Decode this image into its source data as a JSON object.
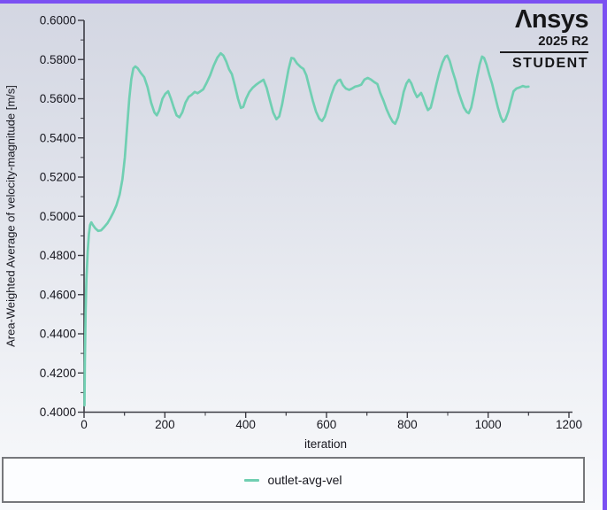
{
  "window": {
    "accent_border_color": "#7b50f2",
    "background_top": "#d3d6e2",
    "background_bottom": "#f9fafc"
  },
  "logo": {
    "brand_display": "Λnsys",
    "release": "2025 R2",
    "edition": "STUDENT"
  },
  "legend": {
    "entries": [
      {
        "label": "outlet-avg-vel",
        "color": "#70cfb2"
      }
    ]
  },
  "chart_data": {
    "type": "line",
    "title": "",
    "xlabel": "iteration",
    "ylabel": "Area-Weighted Average of velocity-magnitude [m/s]",
    "xlim": [
      0,
      1200
    ],
    "ylim": [
      0.4,
      0.6
    ],
    "x_major_step": 200,
    "x_minor_step": 100,
    "y_major_step": 0.02,
    "y_minor_step": 0.01,
    "y_tick_decimals": 4,
    "grid": false,
    "legend_position": "bottom",
    "axis_color": "#3c3c44",
    "tick_label_color": "#17171f",
    "series": [
      {
        "name": "outlet-avg-vel",
        "color": "#70cfb2",
        "points": [
          [
            1,
            0.4035
          ],
          [
            2,
            0.425
          ],
          [
            4,
            0.452
          ],
          [
            6,
            0.468
          ],
          [
            9,
            0.482
          ],
          [
            12,
            0.491
          ],
          [
            15,
            0.4955
          ],
          [
            18,
            0.4969
          ],
          [
            22,
            0.4955
          ],
          [
            28,
            0.4938
          ],
          [
            35,
            0.4925
          ],
          [
            42,
            0.4928
          ],
          [
            50,
            0.4945
          ],
          [
            58,
            0.4965
          ],
          [
            65,
            0.499
          ],
          [
            72,
            0.5018
          ],
          [
            80,
            0.5055
          ],
          [
            88,
            0.511
          ],
          [
            95,
            0.519
          ],
          [
            101,
            0.53
          ],
          [
            107,
            0.547
          ],
          [
            112,
            0.56
          ],
          [
            117,
            0.57
          ],
          [
            122,
            0.5755
          ],
          [
            127,
            0.5765
          ],
          [
            133,
            0.5755
          ],
          [
            141,
            0.573
          ],
          [
            149,
            0.571
          ],
          [
            157,
            0.566
          ],
          [
            166,
            0.558
          ],
          [
            174,
            0.553
          ],
          [
            180,
            0.5515
          ],
          [
            186,
            0.554
          ],
          [
            194,
            0.56
          ],
          [
            201,
            0.5625
          ],
          [
            208,
            0.5638
          ],
          [
            215,
            0.56
          ],
          [
            222,
            0.5555
          ],
          [
            229,
            0.5515
          ],
          [
            236,
            0.5505
          ],
          [
            243,
            0.553
          ],
          [
            251,
            0.558
          ],
          [
            259,
            0.561
          ],
          [
            266,
            0.562
          ],
          [
            274,
            0.5635
          ],
          [
            281,
            0.5628
          ],
          [
            288,
            0.5638
          ],
          [
            295,
            0.5648
          ],
          [
            303,
            0.568
          ],
          [
            312,
            0.572
          ],
          [
            321,
            0.577
          ],
          [
            330,
            0.581
          ],
          [
            338,
            0.5832
          ],
          [
            345,
            0.582
          ],
          [
            352,
            0.579
          ],
          [
            359,
            0.575
          ],
          [
            366,
            0.5725
          ],
          [
            373,
            0.567
          ],
          [
            381,
            0.56
          ],
          [
            388,
            0.5553
          ],
          [
            394,
            0.5558
          ],
          [
            401,
            0.56
          ],
          [
            409,
            0.5635
          ],
          [
            417,
            0.5655
          ],
          [
            426,
            0.5672
          ],
          [
            435,
            0.5685
          ],
          [
            444,
            0.5697
          ],
          [
            452,
            0.5655
          ],
          [
            460,
            0.559
          ],
          [
            468,
            0.553
          ],
          [
            476,
            0.5495
          ],
          [
            483,
            0.551
          ],
          [
            490,
            0.557
          ],
          [
            498,
            0.566
          ],
          [
            506,
            0.575
          ],
          [
            513,
            0.5808
          ],
          [
            519,
            0.5805
          ],
          [
            527,
            0.578
          ],
          [
            536,
            0.5762
          ],
          [
            543,
            0.5752
          ],
          [
            550,
            0.572
          ],
          [
            558,
            0.5655
          ],
          [
            566,
            0.559
          ],
          [
            574,
            0.5535
          ],
          [
            582,
            0.5498
          ],
          [
            589,
            0.5486
          ],
          [
            596,
            0.551
          ],
          [
            604,
            0.5565
          ],
          [
            612,
            0.562
          ],
          [
            620,
            0.5665
          ],
          [
            628,
            0.5692
          ],
          [
            634,
            0.5697
          ],
          [
            641,
            0.5668
          ],
          [
            648,
            0.5652
          ],
          [
            656,
            0.5645
          ],
          [
            663,
            0.5652
          ],
          [
            671,
            0.5662
          ],
          [
            678,
            0.5665
          ],
          [
            686,
            0.5672
          ],
          [
            694,
            0.5698
          ],
          [
            702,
            0.5706
          ],
          [
            710,
            0.5698
          ],
          [
            718,
            0.5685
          ],
          [
            726,
            0.5675
          ],
          [
            733,
            0.563
          ],
          [
            741,
            0.559
          ],
          [
            749,
            0.5545
          ],
          [
            757,
            0.5508
          ],
          [
            764,
            0.5482
          ],
          [
            770,
            0.5472
          ],
          [
            777,
            0.5505
          ],
          [
            784,
            0.5565
          ],
          [
            791,
            0.5635
          ],
          [
            798,
            0.5678
          ],
          [
            804,
            0.5697
          ],
          [
            810,
            0.5678
          ],
          [
            817,
            0.5638
          ],
          [
            824,
            0.5608
          ],
          [
            829,
            0.5618
          ],
          [
            834,
            0.563
          ],
          [
            839,
            0.5608
          ],
          [
            845,
            0.557
          ],
          [
            851,
            0.5542
          ],
          [
            858,
            0.5555
          ],
          [
            865,
            0.5612
          ],
          [
            872,
            0.5675
          ],
          [
            879,
            0.5732
          ],
          [
            887,
            0.5785
          ],
          [
            894,
            0.5815
          ],
          [
            899,
            0.582
          ],
          [
            905,
            0.5792
          ],
          [
            912,
            0.574
          ],
          [
            919,
            0.5695
          ],
          [
            926,
            0.5638
          ],
          [
            933,
            0.5595
          ],
          [
            940,
            0.5555
          ],
          [
            947,
            0.5532
          ],
          [
            952,
            0.5526
          ],
          [
            958,
            0.5555
          ],
          [
            965,
            0.5625
          ],
          [
            972,
            0.5705
          ],
          [
            979,
            0.5775
          ],
          [
            985,
            0.5815
          ],
          [
            990,
            0.5808
          ],
          [
            996,
            0.5775
          ],
          [
            1003,
            0.5722
          ],
          [
            1010,
            0.5675
          ],
          [
            1017,
            0.5615
          ],
          [
            1024,
            0.5556
          ],
          [
            1031,
            0.5508
          ],
          [
            1037,
            0.5482
          ],
          [
            1043,
            0.5495
          ],
          [
            1050,
            0.5535
          ],
          [
            1057,
            0.5592
          ],
          [
            1063,
            0.5638
          ],
          [
            1070,
            0.5652
          ],
          [
            1078,
            0.5658
          ],
          [
            1086,
            0.5665
          ],
          [
            1093,
            0.566
          ],
          [
            1100,
            0.5662
          ]
        ]
      }
    ]
  }
}
